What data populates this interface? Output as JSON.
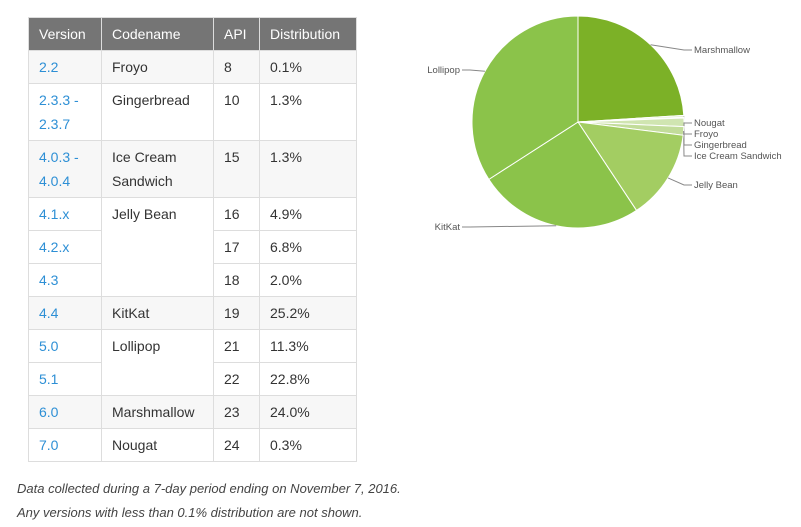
{
  "table": {
    "headers": [
      "Version",
      "Codename",
      "API",
      "Distribution"
    ],
    "rows": [
      {
        "version": "2.2",
        "codename": "Froyo",
        "api": "8",
        "distribution": "0.1%"
      },
      {
        "version": "2.3.3 -\n2.3.7",
        "codename": "Gingerbread",
        "api": "10",
        "distribution": "1.3%"
      },
      {
        "version": "4.0.3 -\n4.0.4",
        "codename": "Ice Cream\nSandwich",
        "api": "15",
        "distribution": "1.3%"
      },
      {
        "version": "4.1.x",
        "codename": "Jelly Bean",
        "api": "16",
        "distribution": "4.9%"
      },
      {
        "version": "4.2.x",
        "codename": "",
        "api": "17",
        "distribution": "6.8%"
      },
      {
        "version": "4.3",
        "codename": "",
        "api": "18",
        "distribution": "2.0%"
      },
      {
        "version": "4.4",
        "codename": "KitKat",
        "api": "19",
        "distribution": "25.2%"
      },
      {
        "version": "5.0",
        "codename": "Lollipop",
        "api": "21",
        "distribution": "11.3%"
      },
      {
        "version": "5.1",
        "codename": "",
        "api": "22",
        "distribution": "22.8%"
      },
      {
        "version": "6.0",
        "codename": "Marshmallow",
        "api": "23",
        "distribution": "24.0%"
      },
      {
        "version": "7.0",
        "codename": "Nougat",
        "api": "24",
        "distribution": "0.3%"
      }
    ]
  },
  "notes": {
    "line1": "Data collected during a 7-day period ending on November 7, 2016.",
    "line2": "Any versions with less than 0.1% distribution are not shown."
  },
  "chart_data": {
    "type": "pie",
    "slices": [
      {
        "label": "Marshmallow",
        "value": 24.0,
        "color": "#7cb127"
      },
      {
        "label": "Nougat",
        "value": 0.3,
        "color": "#e5f0d3"
      },
      {
        "label": "Froyo",
        "value": 0.1,
        "color": "#dcebc4"
      },
      {
        "label": "Gingerbread",
        "value": 1.3,
        "color": "#d0e5b1"
      },
      {
        "label": "Ice Cream Sandwich",
        "value": 1.3,
        "color": "#c2dc9a"
      },
      {
        "label": "Jelly Bean",
        "value": 13.7,
        "color": "#a3cd62"
      },
      {
        "label": "KitKat",
        "value": 25.2,
        "color": "#8bc34a"
      },
      {
        "label": "Lollipop",
        "value": 34.1,
        "color": "#8bc34a"
      }
    ],
    "start_angle_deg": 0,
    "direction": "clockwise"
  }
}
